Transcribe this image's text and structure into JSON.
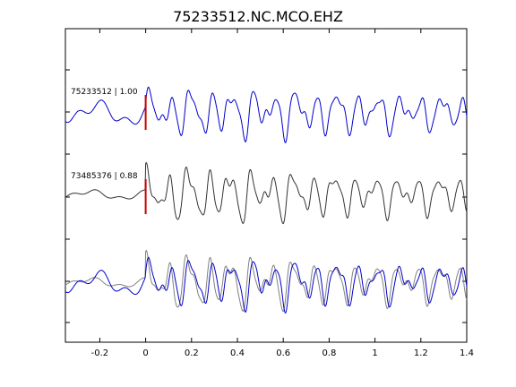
{
  "chart_data": {
    "type": "line",
    "title": "75233512.NC.MCO.EHZ",
    "xlabel": "",
    "ylabel": "",
    "xlim": [
      -0.35,
      1.4
    ],
    "x_ticks": [
      -0.2,
      0,
      0.2,
      0.4,
      0.6,
      0.8,
      1,
      1.2,
      1.4
    ],
    "x_tick_labels": [
      "-0.2",
      "0",
      "0.2",
      "0.4",
      "0.6",
      "0.8",
      "1",
      "1.2",
      "1.4"
    ],
    "grid": false,
    "legend": null,
    "pick_time": 0,
    "trace_labels": [
      {
        "text": "75233512 | 1.00"
      },
      {
        "text": "73485376 | 0.88"
      }
    ],
    "colors": {
      "primary": "#0000cc",
      "secondary": "#333333",
      "overlay_gray": "#808080",
      "pick": "#cc0000"
    }
  }
}
